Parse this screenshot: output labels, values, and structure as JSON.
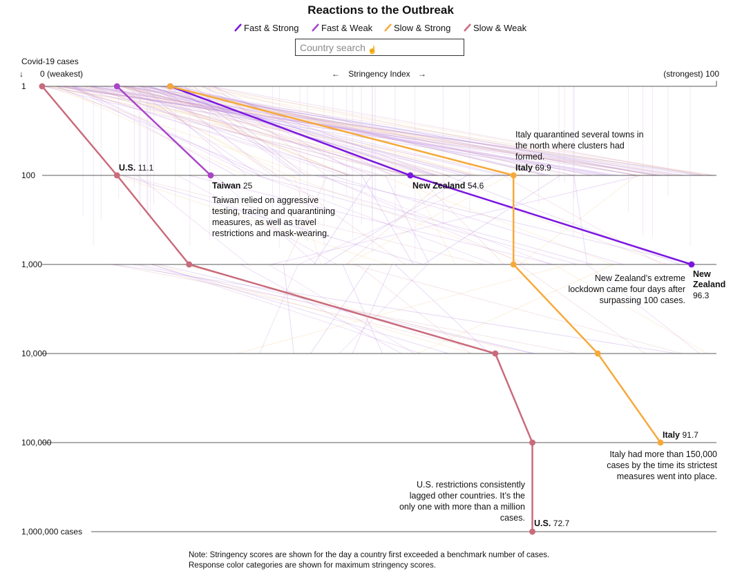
{
  "chart_data": {
    "type": "line",
    "title": "Reactions to the Outbreak",
    "legend": [
      {
        "label": "Fast & Strong",
        "color": "#7b16e0"
      },
      {
        "label": "Fast & Weak",
        "color": "#a845c7"
      },
      {
        "label": "Slow & Strong",
        "color": "#f6a93a"
      },
      {
        "label": "Slow & Weak",
        "color": "#c96b7b"
      }
    ],
    "search_placeholder": "Country search",
    "y_axis_title": "Covid-19 cases",
    "y_arrow": "↓",
    "y_ticks": [
      "1",
      "100",
      "1,000",
      "10,000",
      "100,000",
      "1,000,000 cases"
    ],
    "y_values": [
      1,
      100,
      1000,
      10000,
      100000,
      1000000
    ],
    "x_axis": {
      "left_label": "0 (weakest)",
      "center_label": "Stringency Index",
      "right_label": "(strongest) 100",
      "range": [
        0,
        100
      ]
    },
    "series": [
      {
        "name": "New Zealand",
        "category": "Fast & Strong",
        "color": "#7b16e0",
        "points": [
          {
            "cases": 1,
            "stringency": 19
          },
          {
            "cases": 100,
            "stringency": 54.6
          },
          {
            "cases": 1000,
            "stringency": 96.3
          }
        ]
      },
      {
        "name": "Taiwan",
        "category": "Fast & Weak",
        "color": "#a845c7",
        "points": [
          {
            "cases": 1,
            "stringency": 11.1
          },
          {
            "cases": 100,
            "stringency": 25
          }
        ]
      },
      {
        "name": "Italy",
        "category": "Slow & Strong",
        "color": "#f6a93a",
        "points": [
          {
            "cases": 1,
            "stringency": 19
          },
          {
            "cases": 100,
            "stringency": 69.9
          },
          {
            "cases": 1000,
            "stringency": 69.9
          },
          {
            "cases": 10000,
            "stringency": 82.4
          },
          {
            "cases": 100000,
            "stringency": 91.7
          }
        ]
      },
      {
        "name": "U.S.",
        "category": "Slow & Weak",
        "color": "#c96b7b",
        "points": [
          {
            "cases": 1,
            "stringency": 0
          },
          {
            "cases": 100,
            "stringency": 11.1
          },
          {
            "cases": 1000,
            "stringency": 21.8
          },
          {
            "cases": 10000,
            "stringency": 67.2
          },
          {
            "cases": 100000,
            "stringency": 72.7
          },
          {
            "cases": 1000000,
            "stringency": 72.7
          }
        ]
      }
    ],
    "point_labels": [
      {
        "name": "U.S.",
        "value": "11.1"
      },
      {
        "name": "Taiwan",
        "value": "25"
      },
      {
        "name": "New Zealand",
        "value": "54.6"
      },
      {
        "name": "Italy",
        "value": "69.9"
      },
      {
        "name": "New Zealand",
        "value": "96.3"
      },
      {
        "name": "Italy",
        "value": "91.7"
      },
      {
        "name": "U.S.",
        "value": "72.7"
      }
    ],
    "annotations": {
      "italy_top": [
        "Italy quarantined several towns in",
        "the north where clusters had",
        "formed."
      ],
      "taiwan": [
        "Taiwan relied on aggressive",
        "testing, tracing and quarantining",
        "measures, as well as travel",
        "restrictions and mask-wearing."
      ],
      "nz": [
        "New Zealand’s extreme",
        "lockdown came four days after",
        "surpassing 100 cases."
      ],
      "italy_bottom": [
        "Italy had more than 150,000",
        "cases by the time its strictest",
        "measures went into place."
      ],
      "us": [
        "U.S. restrictions consistently",
        "lagged other countries. It’s the",
        "only one with more than a million",
        "cases."
      ]
    },
    "note": [
      "Note: Stringency scores are shown for the day a country first exceeded a benchmark number of cases.",
      "Response color categories are shown for maximum stringency scores."
    ]
  }
}
